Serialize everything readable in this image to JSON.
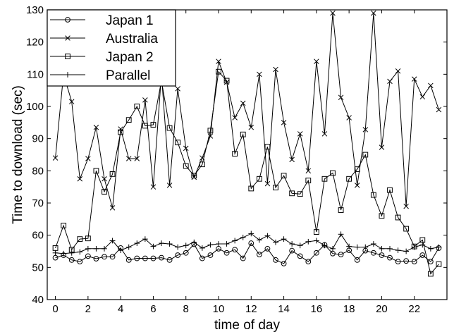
{
  "chart_data": {
    "type": "line",
    "title": "",
    "xlabel": "time of day",
    "ylabel": "Time to download (sec)",
    "xlim": [
      -0.5,
      24
    ],
    "ylim": [
      40,
      130
    ],
    "xticks": [
      0,
      2,
      4,
      6,
      8,
      10,
      12,
      14,
      16,
      18,
      20,
      22
    ],
    "yticks": [
      40,
      50,
      60,
      70,
      80,
      90,
      100,
      110,
      120,
      130
    ],
    "grid": false,
    "legend_position": "top-left",
    "series": [
      {
        "name": "Japan 1",
        "marker": "circle",
        "x": [
          0,
          0.5,
          1,
          1.5,
          2,
          2.5,
          3,
          3.5,
          4,
          4.5,
          5,
          5.5,
          6,
          6.5,
          7,
          7.5,
          8,
          8.5,
          9,
          9.5,
          10,
          10.5,
          11,
          11.5,
          12,
          12.5,
          13,
          13.5,
          14,
          14.5,
          15,
          15.5,
          16,
          16.5,
          17,
          17.5,
          18,
          18.5,
          19,
          19.5,
          20,
          20.5,
          21,
          21.5,
          22,
          22.5,
          23,
          23.5
        ],
        "y": [
          53,
          53.8,
          52.3,
          51.8,
          53.5,
          52.7,
          53.3,
          53.3,
          56,
          52.3,
          52.8,
          52.8,
          52.8,
          53,
          52.3,
          53.8,
          54.5,
          57.2,
          52.8,
          53.8,
          55.8,
          54.5,
          55.5,
          52.8,
          57.5,
          54,
          55.8,
          52.3,
          51.2,
          55.2,
          53.5,
          51.8,
          54.5,
          57,
          54.3,
          54,
          55.3,
          52.3,
          55.2,
          54.5,
          53.8,
          53,
          51.8,
          52,
          51.8,
          53.8,
          51.8,
          56
        ]
      },
      {
        "name": "Australia",
        "marker": "x",
        "x": [
          0,
          0.5,
          1,
          1.5,
          2,
          2.5,
          3,
          3.5,
          4,
          4.5,
          5,
          5.5,
          6,
          6.5,
          7,
          7.5,
          8,
          8.5,
          9,
          9.5,
          10,
          10.5,
          11,
          11.5,
          12,
          12.5,
          13,
          13.5,
          14,
          14.5,
          15,
          15.5,
          16,
          16.5,
          17,
          17.5,
          18,
          18.5,
          19,
          19.5,
          20,
          20.5,
          21,
          21.5,
          22,
          22.5,
          23,
          23.5
        ],
        "y": [
          84,
          110,
          101.5,
          77.5,
          83.8,
          93.5,
          77.5,
          68.5,
          93,
          83.8,
          83.8,
          102,
          75,
          110,
          75.5,
          105.5,
          87,
          78,
          84,
          90.8,
          114,
          107.5,
          96.5,
          101,
          93.5,
          110,
          76,
          111.5,
          95,
          83.5,
          91.5,
          80,
          114,
          91.5,
          129,
          102.8,
          96.5,
          75.5,
          92.8,
          129,
          87.3,
          107.8,
          111,
          69,
          108.5,
          103,
          106.5,
          99
        ]
      },
      {
        "name": "Japan 2",
        "marker": "square",
        "x": [
          0,
          0.5,
          1,
          1.5,
          2,
          2.5,
          3,
          3.5,
          4,
          4.5,
          5,
          5.5,
          6,
          6.5,
          7,
          7.5,
          8,
          8.5,
          9,
          9.5,
          10,
          10.5,
          11,
          11.5,
          12,
          12.5,
          13,
          13.5,
          14,
          14.5,
          15,
          15.5,
          16,
          16.5,
          17,
          17.5,
          18,
          18.5,
          19,
          19.5,
          20,
          20.5,
          21,
          21.5,
          22,
          22.5,
          23,
          23.5
        ],
        "y": [
          56,
          63,
          55.5,
          58.8,
          59,
          80,
          73.5,
          79,
          92,
          95.8,
          100,
          94,
          94.3,
          108,
          93.3,
          88.8,
          81.5,
          78.5,
          82,
          92.5,
          110.8,
          108,
          85.3,
          91.3,
          74.5,
          77.5,
          87.5,
          74.8,
          78.5,
          73,
          72.8,
          77,
          61,
          77.5,
          79.3,
          67.8,
          77.5,
          80.5,
          85,
          72.5,
          66,
          74,
          65.5,
          62,
          56.5,
          58.5,
          48,
          51
        ]
      },
      {
        "name": "Parallel",
        "marker": "plus",
        "x": [
          0,
          0.5,
          1,
          1.5,
          2,
          2.5,
          3,
          3.5,
          4,
          4.5,
          5,
          5.5,
          6,
          6.5,
          7,
          7.5,
          8,
          8.5,
          9,
          9.5,
          10,
          10.5,
          11,
          11.5,
          12,
          12.5,
          13,
          13.5,
          14,
          14.5,
          15,
          15.5,
          16,
          16.5,
          17,
          17.5,
          18,
          18.5,
          19,
          19.5,
          20,
          20.5,
          21,
          21.5,
          22,
          22.5,
          23,
          23.5
        ],
        "y": [
          54.5,
          54.3,
          54.5,
          54.8,
          55.8,
          55.8,
          55.8,
          58.3,
          55.3,
          56.3,
          57.5,
          58.8,
          56.5,
          57.5,
          57.3,
          56.3,
          56.8,
          57.8,
          56,
          57,
          57.3,
          57.3,
          58.3,
          59.3,
          60.5,
          58.5,
          59.8,
          57.8,
          58.8,
          57.3,
          56.8,
          58,
          58.3,
          56.8,
          55.8,
          60.3,
          56.5,
          56.3,
          56.3,
          57.3,
          55.8,
          55.8,
          55.3,
          55,
          56.3,
          57,
          55.8,
          56.3
        ]
      }
    ]
  }
}
